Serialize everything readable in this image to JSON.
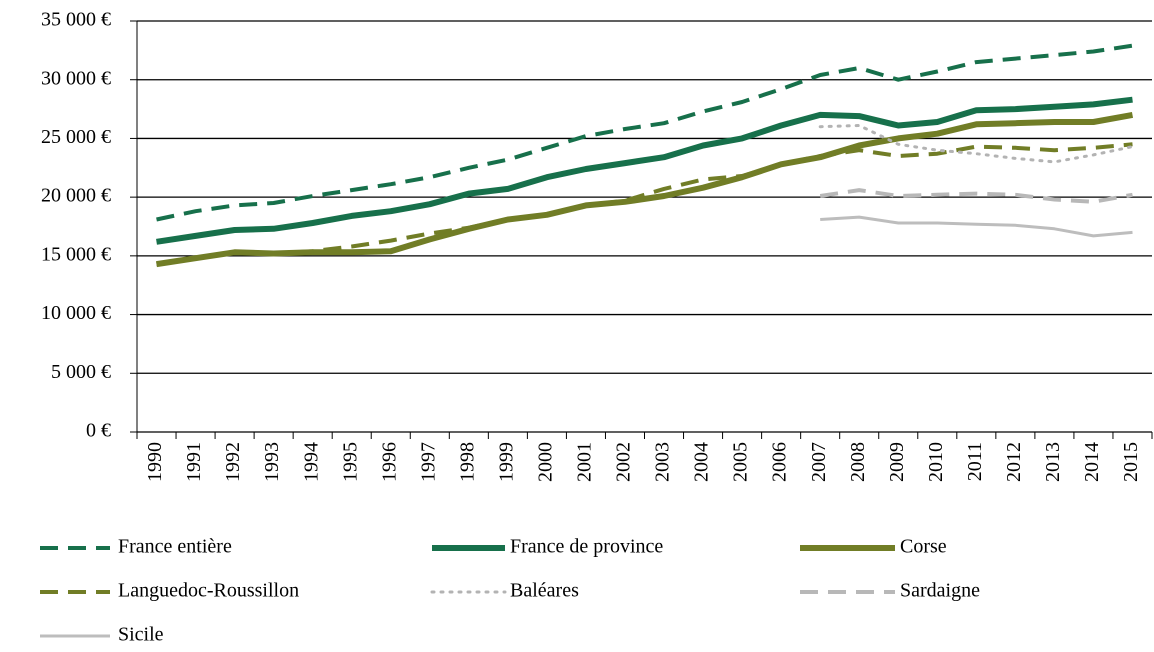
{
  "chart_data": {
    "type": "line",
    "categories": [
      "1990",
      "1991",
      "1992",
      "1993",
      "1994",
      "1995",
      "1996",
      "1997",
      "1998",
      "1999",
      "2000",
      "2001",
      "2002",
      "2003",
      "2004",
      "2005",
      "2006",
      "2007",
      "2008",
      "2009",
      "2010",
      "2011",
      "2012",
      "2013",
      "2014",
      "2015"
    ],
    "ylim": [
      0,
      35000
    ],
    "yticks": [
      {
        "value": 0,
        "label": "0 €"
      },
      {
        "value": 5000,
        "label": "5 000 €"
      },
      {
        "value": 10000,
        "label": "10 000 €"
      },
      {
        "value": 15000,
        "label": "15 000 €"
      },
      {
        "value": 20000,
        "label": "20 000 €"
      },
      {
        "value": 25000,
        "label": "25 000 €"
      },
      {
        "value": 30000,
        "label": "30 000 €"
      },
      {
        "value": 35000,
        "label": "35 000 €"
      }
    ],
    "grid": true,
    "legend": "bottom",
    "series": [
      {
        "name": "France entière",
        "color": "#17704b",
        "style": "dashed",
        "weight": "medium",
        "values": [
          18100,
          18800,
          19300,
          19500,
          20100,
          20600,
          21100,
          21700,
          22500,
          23200,
          24200,
          25200,
          25800,
          26300,
          27300,
          28100,
          29200,
          30400,
          31000,
          30000,
          30700,
          31500,
          31800,
          32100,
          32400,
          32900
        ]
      },
      {
        "name": "France de province",
        "color": "#17704b",
        "style": "solid",
        "weight": "thick",
        "values": [
          16200,
          16700,
          17200,
          17300,
          17800,
          18400,
          18800,
          19400,
          20300,
          20700,
          21700,
          22400,
          22900,
          23400,
          24400,
          25000,
          26100,
          27000,
          26900,
          26100,
          26400,
          27400,
          27500,
          27700,
          27900,
          28300
        ]
      },
      {
        "name": "Corse",
        "color": "#717d26",
        "style": "solid",
        "weight": "thick",
        "values": [
          14300,
          14800,
          15300,
          15200,
          15300,
          15300,
          15400,
          16400,
          17300,
          18100,
          18500,
          19300,
          19600,
          20100,
          20800,
          21700,
          22800,
          23400,
          24400,
          25000,
          25400,
          26200,
          26300,
          26400,
          26400,
          27000
        ]
      },
      {
        "name": "Languedoc-Roussillon",
        "color": "#717d26",
        "style": "dashed",
        "weight": "medium",
        "values": [
          14300,
          14800,
          15300,
          15200,
          15400,
          15800,
          16300,
          16900,
          17400,
          18100,
          18500,
          19300,
          19700,
          20700,
          21500,
          21800,
          22800,
          23500,
          24000,
          23500,
          23700,
          24300,
          24200,
          24000,
          24200,
          24500
        ]
      },
      {
        "name": "Baléares",
        "color": "#b3b3b3",
        "style": "dotted",
        "weight": "thin",
        "values": [
          null,
          null,
          null,
          null,
          null,
          null,
          null,
          null,
          null,
          null,
          null,
          null,
          null,
          null,
          null,
          null,
          null,
          26000,
          26100,
          24500,
          24000,
          23700,
          23300,
          23000,
          23600,
          24300
        ]
      },
      {
        "name": "Sardaigne",
        "color": "#b8b8b8",
        "style": "dashed",
        "weight": "medium",
        "values": [
          null,
          null,
          null,
          null,
          null,
          null,
          null,
          null,
          null,
          null,
          null,
          null,
          null,
          null,
          null,
          null,
          null,
          20100,
          20600,
          20100,
          20200,
          20300,
          20200,
          19800,
          19600,
          20200
        ]
      },
      {
        "name": "Sicile",
        "color": "#bdbdbd",
        "style": "solid",
        "weight": "thin",
        "values": [
          null,
          null,
          null,
          null,
          null,
          null,
          null,
          null,
          null,
          null,
          null,
          null,
          null,
          null,
          null,
          null,
          null,
          18100,
          18300,
          17800,
          17800,
          17700,
          17600,
          17300,
          16700,
          17000
        ]
      }
    ]
  }
}
